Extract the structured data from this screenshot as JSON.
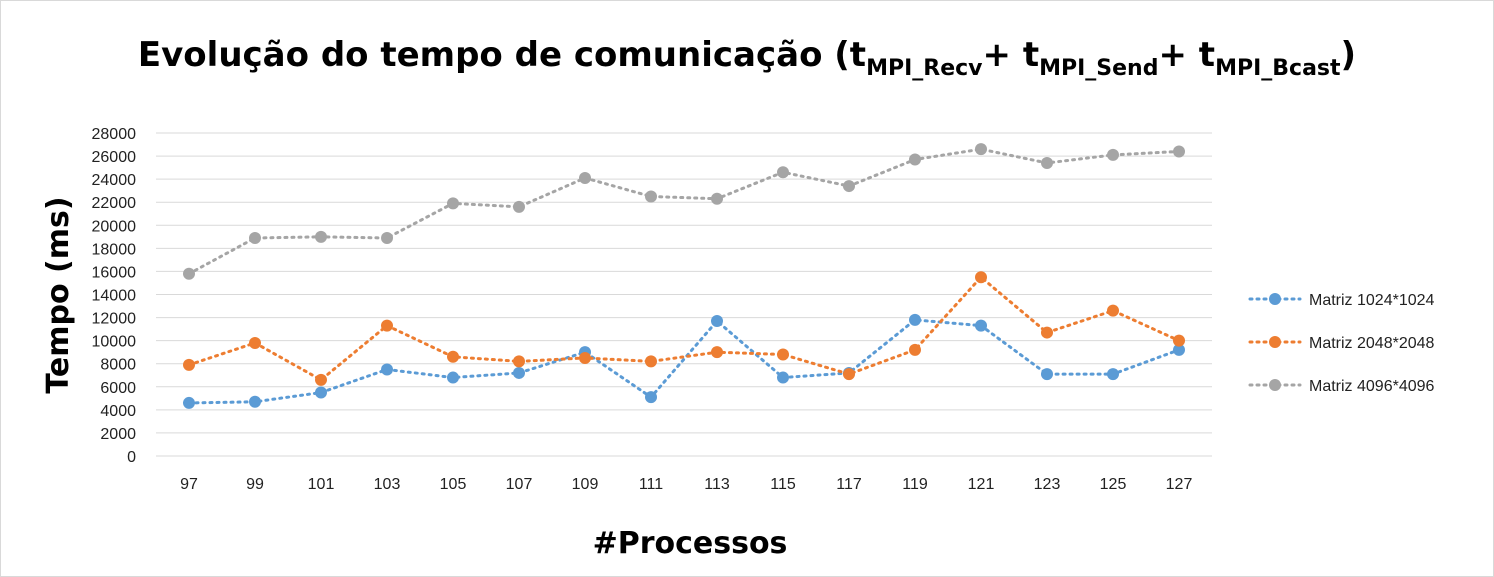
{
  "chart_data": {
    "type": "line",
    "title": {
      "main": "Evolução do tempo de comunicação (t",
      "sub1": "MPI_Recv",
      "plus1": "+ t",
      "sub2": "MPI_Send",
      "plus2": "+ t",
      "sub3": "MPI_Bcast",
      "close": ")"
    },
    "xlabel": "#Processos",
    "ylabel": "Tempo (ms)",
    "x": [
      "97",
      "99",
      "101",
      "103",
      "105",
      "107",
      "109",
      "111",
      "113",
      "115",
      "117",
      "119",
      "121",
      "123",
      "125",
      "127"
    ],
    "y_ticks": [
      "0",
      "2000",
      "4000",
      "6000",
      "8000",
      "10000",
      "12000",
      "14000",
      "16000",
      "18000",
      "20000",
      "22000",
      "24000",
      "26000",
      "28000"
    ],
    "ylim": [
      0,
      28000
    ],
    "grid": true,
    "legend_position": "right",
    "line_style": "dotted",
    "series": [
      {
        "name": "Matriz 1024*1024",
        "color": "#5b9bd5",
        "values": [
          4600,
          4700,
          5500,
          7500,
          6800,
          7200,
          9000,
          5100,
          11700,
          6800,
          7200,
          11800,
          11300,
          7100,
          7100,
          9200
        ]
      },
      {
        "name": "Matriz 2048*2048",
        "color": "#ed7d31",
        "values": [
          7900,
          9800,
          6600,
          11300,
          8600,
          8200,
          8500,
          8200,
          9000,
          8800,
          7100,
          9200,
          15500,
          10700,
          12600,
          10000
        ]
      },
      {
        "name": "Matriz 4096*4096",
        "color": "#a5a5a5",
        "values": [
          15800,
          18900,
          19000,
          18900,
          21900,
          21600,
          24100,
          22500,
          22300,
          24600,
          23400,
          25700,
          26600,
          25400,
          26100,
          26400
        ]
      }
    ]
  }
}
